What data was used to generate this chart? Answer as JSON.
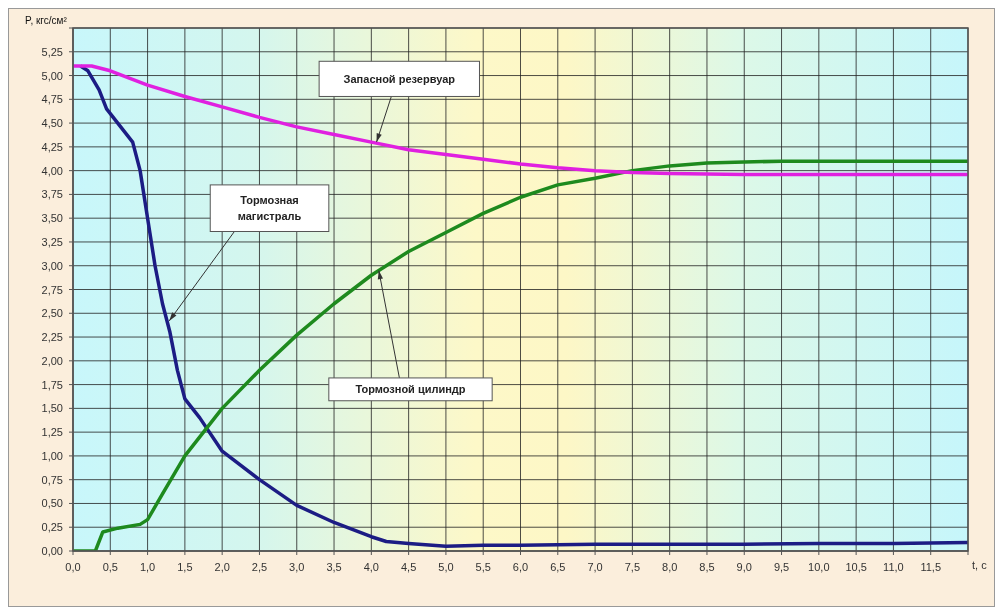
{
  "chart_data": {
    "type": "line",
    "xlabel": "t, c",
    "ylabel": "P, кгс/см²",
    "xlim": [
      0,
      12
    ],
    "xticks": [
      {
        "value": 0,
        "label": "0,0"
      },
      {
        "value": 0.5,
        "label": "0,5"
      },
      {
        "value": 1,
        "label": "1,0"
      },
      {
        "value": 1.5,
        "label": "1,5"
      },
      {
        "value": 2,
        "label": "2,0"
      },
      {
        "value": 2.5,
        "label": "2,5"
      },
      {
        "value": 3,
        "label": "3,0"
      },
      {
        "value": 3.5,
        "label": "3,5"
      },
      {
        "value": 4,
        "label": "4,0"
      },
      {
        "value": 4.5,
        "label": "4,5"
      },
      {
        "value": 5,
        "label": "5,0"
      },
      {
        "value": 5.5,
        "label": "5,5"
      },
      {
        "value": 6,
        "label": "6,0"
      },
      {
        "value": 6.5,
        "label": "6,5"
      },
      {
        "value": 7,
        "label": "7,0"
      },
      {
        "value": 7.5,
        "label": "7,5"
      },
      {
        "value": 8,
        "label": "8,0"
      },
      {
        "value": 8.5,
        "label": "8,5"
      },
      {
        "value": 9,
        "label": "9,0"
      },
      {
        "value": 9.5,
        "label": "9,5"
      },
      {
        "value": 10,
        "label": "10,0"
      },
      {
        "value": 10.5,
        "label": "10,5"
      },
      {
        "value": 11,
        "label": "11,0"
      },
      {
        "value": 11.5,
        "label": "11,5"
      },
      {
        "value": 12,
        "label": null
      }
    ],
    "ylim": [
      0,
      5.5
    ],
    "yticks": [
      {
        "value": 0,
        "label": "0,00"
      },
      {
        "value": 0.25,
        "label": "0,25"
      },
      {
        "value": 0.5,
        "label": "0,50"
      },
      {
        "value": 0.75,
        "label": "0,75"
      },
      {
        "value": 1,
        "label": "1,00"
      },
      {
        "value": 1.25,
        "label": "1,25"
      },
      {
        "value": 1.5,
        "label": "1,50"
      },
      {
        "value": 1.75,
        "label": "1,75"
      },
      {
        "value": 2,
        "label": "2,00"
      },
      {
        "value": 2.25,
        "label": "2,25"
      },
      {
        "value": 2.5,
        "label": "2,50"
      },
      {
        "value": 2.75,
        "label": "2,75"
      },
      {
        "value": 3,
        "label": "3,00"
      },
      {
        "value": 3.25,
        "label": "3,25"
      },
      {
        "value": 3.5,
        "label": "3,50"
      },
      {
        "value": 3.75,
        "label": "3,75"
      },
      {
        "value": 4,
        "label": "4,00"
      },
      {
        "value": 4.25,
        "label": "4,25"
      },
      {
        "value": 4.5,
        "label": "4,50"
      },
      {
        "value": 4.75,
        "label": "4,75"
      },
      {
        "value": 5,
        "label": "5,00"
      },
      {
        "value": 5.25,
        "label": "5,25"
      },
      {
        "value": 5.5,
        "label": null
      }
    ],
    "grid": true,
    "marker": "none",
    "line_style": "solid",
    "annotations": [
      {
        "text": "Тормозная магистраль",
        "x": 1.29,
        "y": 2.42
      },
      {
        "text": "Тормозной цилиндр",
        "x": 4.1,
        "y": 2.95
      },
      {
        "text": "Запасной резервуар",
        "x": 4.07,
        "y": 4.3
      }
    ],
    "series": [
      {
        "color": "#1c1c84",
        "x": [
          0.1,
          0.2,
          0.35,
          0.45,
          0.8,
          0.9,
          1.0,
          1.1,
          1.2,
          1.3,
          1.4,
          1.5,
          1.7,
          2.0,
          2.5,
          3.0,
          3.5,
          4.0,
          4.2,
          4.5,
          5.0,
          5.5,
          6.0,
          7.0,
          8.0,
          9.0,
          10.0,
          11.0,
          12.0
        ],
        "values": [
          5.1,
          5.05,
          4.85,
          4.65,
          4.3,
          4.0,
          3.5,
          3.0,
          2.6,
          2.3,
          1.9,
          1.6,
          1.4,
          1.05,
          0.75,
          0.48,
          0.3,
          0.15,
          0.1,
          0.08,
          0.05,
          0.06,
          0.06,
          0.07,
          0.07,
          0.07,
          0.08,
          0.08,
          0.09
        ]
      },
      {
        "color": "#1e8a1e",
        "x": [
          0,
          0.3,
          0.4,
          0.6,
          0.9,
          1.0,
          1.2,
          1.5,
          2.0,
          2.5,
          3.0,
          3.5,
          4.0,
          4.5,
          5.0,
          5.5,
          6.0,
          6.5,
          7.0,
          7.5,
          8.0,
          8.5,
          9.0,
          9.5,
          12
        ],
        "values": [
          0,
          0,
          0.2,
          0.24,
          0.28,
          0.33,
          0.6,
          1.0,
          1.5,
          1.9,
          2.27,
          2.6,
          2.9,
          3.15,
          3.35,
          3.55,
          3.72,
          3.85,
          3.92,
          4.0,
          4.05,
          4.08,
          4.09,
          4.1,
          4.1
        ]
      },
      {
        "color": "#e020e0",
        "x": [
          0,
          0.25,
          0.5,
          1.0,
          1.5,
          2.0,
          2.5,
          3.0,
          3.5,
          4.0,
          4.5,
          5.0,
          5.5,
          6.0,
          6.5,
          7.0,
          7.5,
          8.0,
          9.0,
          12
        ],
        "values": [
          5.1,
          5.1,
          5.05,
          4.9,
          4.78,
          4.67,
          4.56,
          4.46,
          4.38,
          4.3,
          4.22,
          4.17,
          4.12,
          4.07,
          4.03,
          4.0,
          3.98,
          3.97,
          3.96,
          3.96
        ]
      }
    ]
  }
}
